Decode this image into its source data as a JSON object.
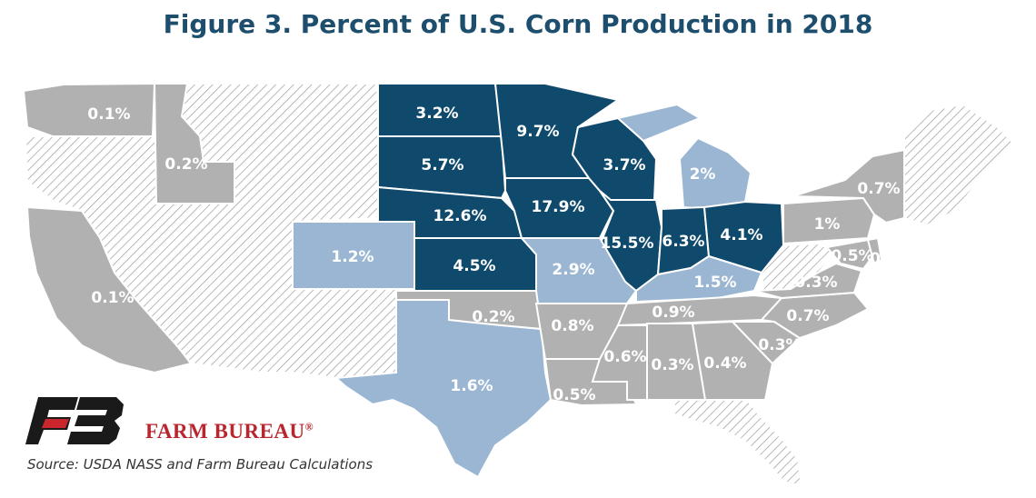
{
  "title": "Figure 3. Percent of U.S. Corn Production in 2018",
  "source": "Source: USDA NASS and Farm Bureau Calculations",
  "brand": {
    "name": "FARM BUREAU",
    "mark": "®"
  },
  "legend_colors": {
    "high": "#0f4a6d",
    "medium": "#9ab6d3",
    "low": "#b1b1b1",
    "none": "hatched"
  },
  "states": [
    {
      "code": "WA",
      "value": "0.1%",
      "tier": "low"
    },
    {
      "code": "ID",
      "value": "0.2%",
      "tier": "low"
    },
    {
      "code": "CA",
      "value": "0.1%",
      "tier": "low"
    },
    {
      "code": "CO",
      "value": "1.2%",
      "tier": "medium"
    },
    {
      "code": "ND",
      "value": "3.2%",
      "tier": "high"
    },
    {
      "code": "SD",
      "value": "5.7%",
      "tier": "high"
    },
    {
      "code": "NE",
      "value": "12.6%",
      "tier": "high"
    },
    {
      "code": "KS",
      "value": "4.5%",
      "tier": "high"
    },
    {
      "code": "MN",
      "value": "9.7%",
      "tier": "high"
    },
    {
      "code": "IA",
      "value": "17.9%",
      "tier": "high"
    },
    {
      "code": "WI",
      "value": "3.7%",
      "tier": "high"
    },
    {
      "code": "MI",
      "value": "2%",
      "tier": "medium"
    },
    {
      "code": "IL",
      "value": "15.5%",
      "tier": "high"
    },
    {
      "code": "IN",
      "value": "6.3%",
      "tier": "high"
    },
    {
      "code": "OH",
      "value": "4.1%",
      "tier": "high"
    },
    {
      "code": "MO",
      "value": "2.9%",
      "tier": "medium"
    },
    {
      "code": "KY",
      "value": "1.5%",
      "tier": "medium"
    },
    {
      "code": "TX",
      "value": "1.6%",
      "tier": "medium"
    },
    {
      "code": "OK",
      "value": "0.2%",
      "tier": "low"
    },
    {
      "code": "AR",
      "value": "0.8%",
      "tier": "low"
    },
    {
      "code": "LA",
      "value": "0.5%",
      "tier": "low"
    },
    {
      "code": "MS",
      "value": "0.6%",
      "tier": "low"
    },
    {
      "code": "AL",
      "value": "0.3%",
      "tier": "low"
    },
    {
      "code": "GA",
      "value": "0.4%",
      "tier": "low"
    },
    {
      "code": "SC",
      "value": "0.3%",
      "tier": "low"
    },
    {
      "code": "NC",
      "value": "0.7%",
      "tier": "low"
    },
    {
      "code": "TN",
      "value": "0.9%",
      "tier": "low"
    },
    {
      "code": "VA",
      "value": "0.3%",
      "tier": "low"
    },
    {
      "code": "PA",
      "value": "1%",
      "tier": "low"
    },
    {
      "code": "NY",
      "value": "0.7%",
      "tier": "low"
    },
    {
      "code": "MD",
      "value": "0.5%",
      "tier": "low"
    },
    {
      "code": "DE",
      "value": "0",
      "tier": "low"
    }
  ]
}
